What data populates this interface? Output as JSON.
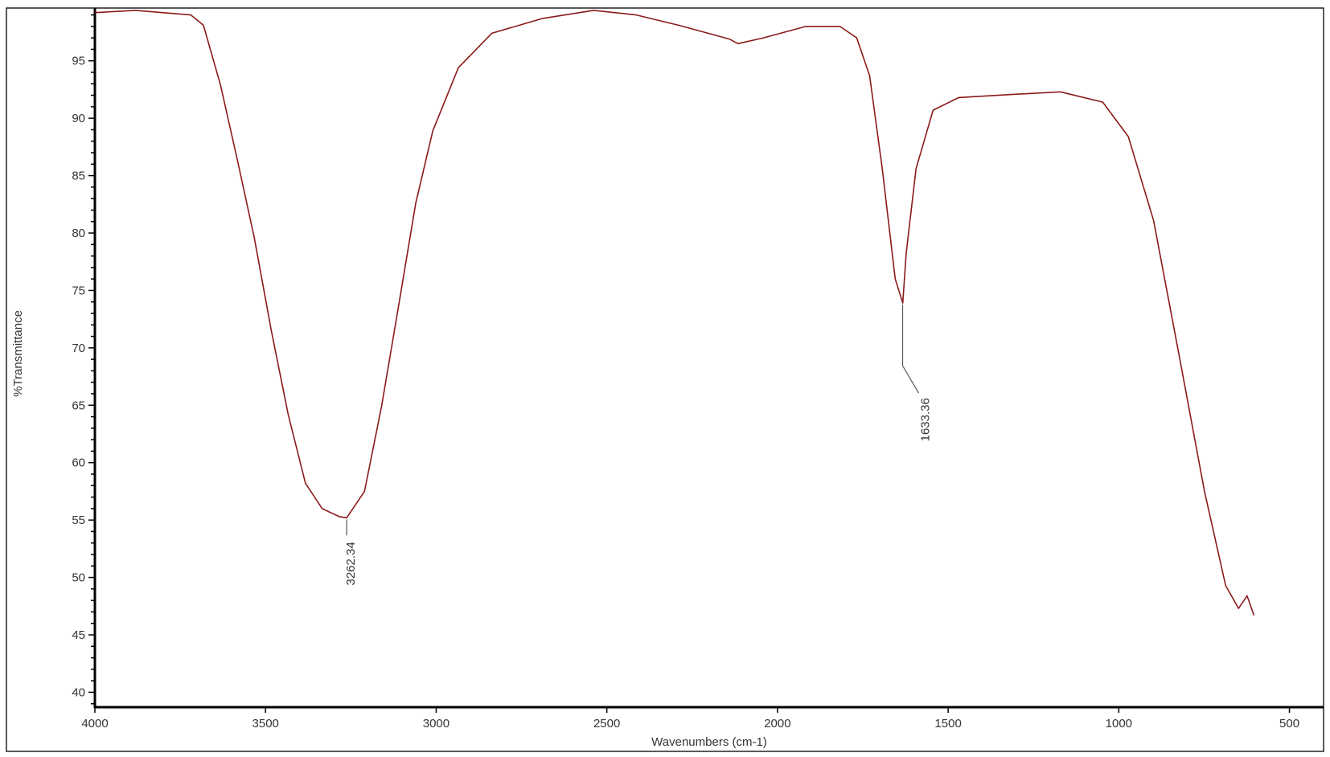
{
  "chart_data": {
    "type": "line",
    "title": "",
    "xlabel": "Wavenumbers (cm-1)",
    "ylabel": "%Transmittance",
    "xlim": [
      4000,
      400
    ],
    "ylim": [
      38.7,
      99.6
    ],
    "x_reversed": true,
    "grid": false,
    "x_ticks": [
      4000,
      3500,
      3000,
      2500,
      2000,
      1500,
      1000,
      500
    ],
    "y_ticks": [
      40,
      45,
      50,
      55,
      60,
      65,
      70,
      75,
      80,
      85,
      90,
      95
    ],
    "line_color": "#8b1a1a",
    "series": [
      {
        "x": [
          4000,
          3881,
          3719,
          3682,
          3632,
          3582,
          3533,
          3483,
          3433,
          3383,
          3334,
          3284,
          3262,
          3210,
          3160,
          3110,
          3060,
          3010,
          2935,
          2837,
          2688,
          2539,
          2414,
          2290,
          2141,
          2116,
          2041,
          1917,
          1817,
          1768,
          1730,
          1693,
          1655,
          1633,
          1623,
          1594,
          1544,
          1469,
          1295,
          1171,
          1047,
          972,
          898,
          823,
          749,
          687,
          649,
          624,
          604
        ],
        "y": [
          99.2,
          99.4,
          99.0,
          98.1,
          92.9,
          86.3,
          79.6,
          71.5,
          64.1,
          58.2,
          56.0,
          55.3,
          55.2,
          57.5,
          64.9,
          73.7,
          82.6,
          88.9,
          94.4,
          97.4,
          98.7,
          99.4,
          99.0,
          98.1,
          96.9,
          96.5,
          97.0,
          98.0,
          98.0,
          97.0,
          93.7,
          85.6,
          76.0,
          73.9,
          78.2,
          85.6,
          90.7,
          91.8,
          92.1,
          92.3,
          91.4,
          88.4,
          81.1,
          69.3,
          57.5,
          49.3,
          47.3,
          48.4,
          46.7
        ]
      }
    ],
    "annotations": [
      {
        "label": "3262.34",
        "x": 3262.34,
        "y": 55.2
      },
      {
        "label": "1633.36",
        "x": 1633.36,
        "y": 73.9
      }
    ]
  }
}
